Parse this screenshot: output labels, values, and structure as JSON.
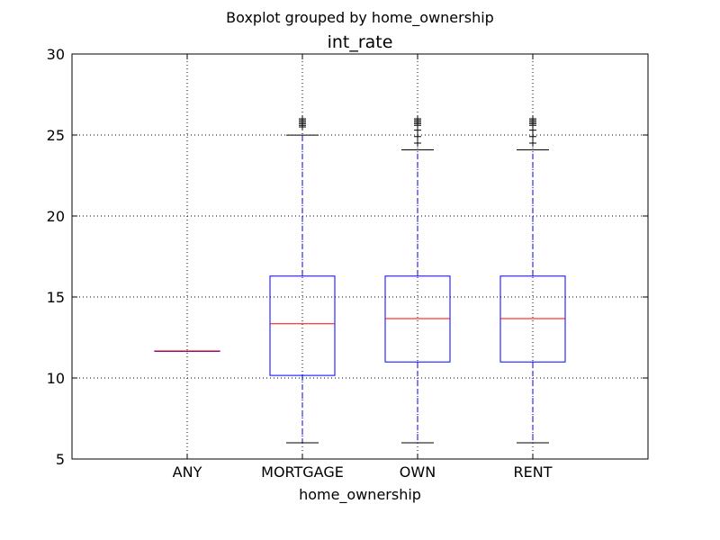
{
  "chart_data": {
    "type": "box",
    "suptitle": "Boxplot grouped by home_ownership",
    "title": "int_rate",
    "xlabel": "home_ownership",
    "ylabel": "",
    "ylim": [
      5,
      30
    ],
    "yticks": [
      5,
      10,
      15,
      20,
      25,
      30
    ],
    "grid": true,
    "colors": {
      "box": "#0000ff",
      "median": "#ff0000",
      "whisker": "#0000ff",
      "cap": "#000000",
      "flier": "#000000",
      "grid": "#000000"
    },
    "categories": [
      "ANY",
      "MORTGAGE",
      "OWN",
      "RENT"
    ],
    "boxes": [
      {
        "name": "ANY",
        "whislo": 11.67,
        "q1": 11.67,
        "med": 11.67,
        "q3": 11.67,
        "whishi": 11.67,
        "fliers": []
      },
      {
        "name": "MORTGAGE",
        "whislo": 6.0,
        "q1": 10.16,
        "med": 13.35,
        "q3": 16.29,
        "whishi": 24.99,
        "fliers": [
          25.5,
          25.6,
          25.7,
          25.8,
          25.9,
          26.0
        ]
      },
      {
        "name": "OWN",
        "whislo": 6.0,
        "q1": 10.99,
        "med": 13.67,
        "q3": 16.29,
        "whishi": 24.08,
        "fliers": [
          24.5,
          24.9,
          25.3,
          25.6,
          25.7,
          25.8,
          25.9,
          26.0
        ]
      },
      {
        "name": "RENT",
        "whislo": 6.0,
        "q1": 10.99,
        "med": 13.67,
        "q3": 16.29,
        "whishi": 24.08,
        "fliers": [
          24.5,
          24.9,
          25.3,
          25.6,
          25.7,
          25.8,
          25.9,
          26.0
        ]
      }
    ]
  }
}
